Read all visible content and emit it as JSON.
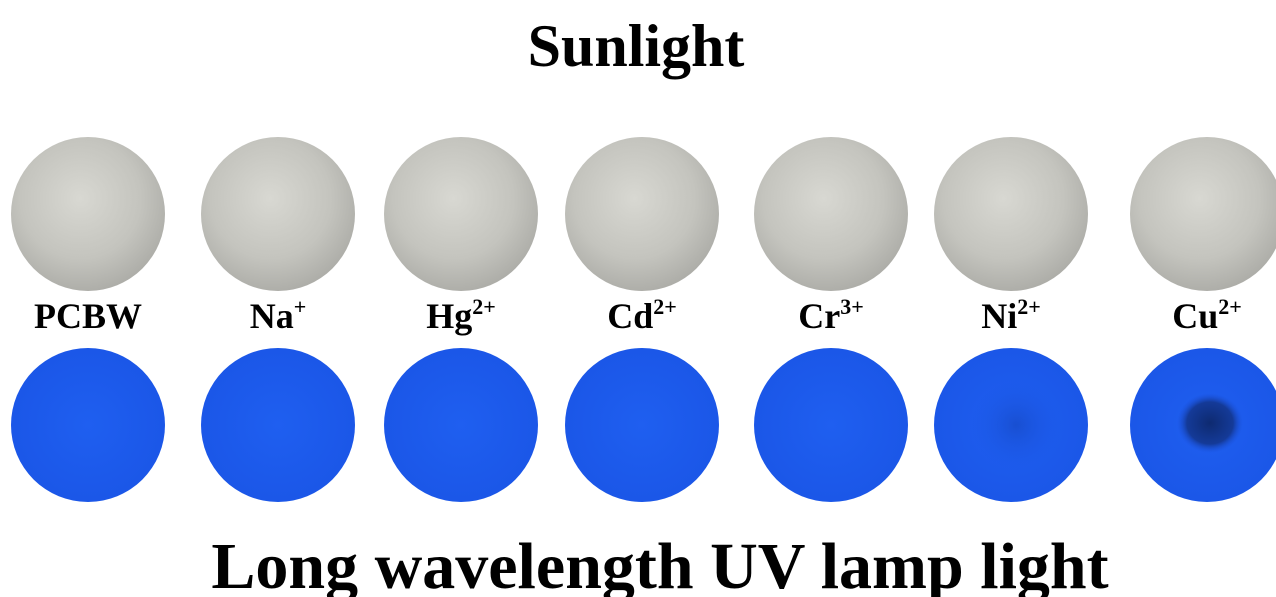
{
  "header": {
    "title": "Sunlight"
  },
  "samples": [
    {
      "base": "PCBW"
    },
    {
      "base": "Na",
      "sup": "+"
    },
    {
      "base": "Hg",
      "sup": "2+"
    },
    {
      "base": "Cd",
      "sup": "2+"
    },
    {
      "base": "Cr",
      "sup": "3+"
    },
    {
      "base": "Ni",
      "sup": "2+"
    },
    {
      "base": "Cu",
      "sup": "2+"
    }
  ],
  "footer": {
    "title": "Long wavelength UV lamp light"
  }
}
